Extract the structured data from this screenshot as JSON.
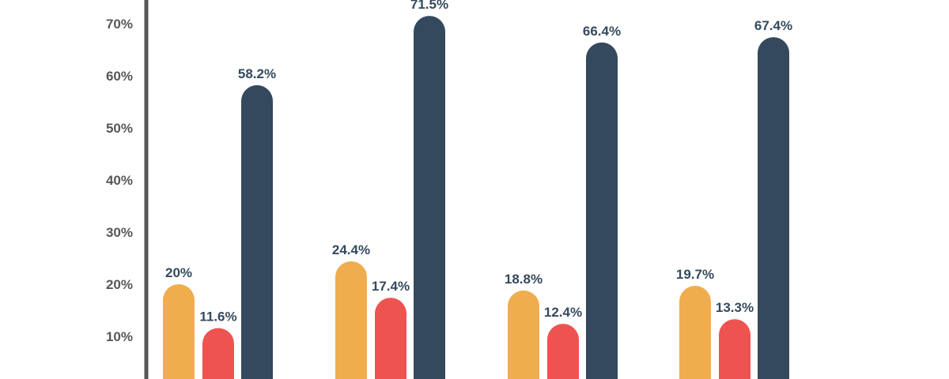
{
  "chart_data": {
    "type": "bar",
    "title": "",
    "xlabel": "",
    "ylabel": "",
    "categories": [
      "",
      "",
      "",
      ""
    ],
    "y_ticks": [
      "10%",
      "20%",
      "30%",
      "40%",
      "50%",
      "60%",
      "70%"
    ],
    "ylim": [
      0,
      75
    ],
    "grid": false,
    "legend": "none",
    "series": [
      {
        "color": "#f0ad4e",
        "values": [
          20,
          24.4,
          18.8,
          19.7
        ],
        "labels": [
          "20%",
          "24.4%",
          "18.8%",
          "19.7%"
        ]
      },
      {
        "color": "#ef5350",
        "values": [
          11.6,
          17.4,
          12.4,
          13.3
        ],
        "labels": [
          "11.6%",
          "17.4%",
          "12.4%",
          "13.3%"
        ]
      },
      {
        "color": "#34495e",
        "values": [
          58.2,
          71.5,
          66.4,
          67.4
        ],
        "labels": [
          "58.2%",
          "71.5%",
          "66.4%",
          "67.4%"
        ]
      }
    ],
    "axis_color": "#555555",
    "tick_color": "#575757",
    "label_color": "#34495e"
  }
}
